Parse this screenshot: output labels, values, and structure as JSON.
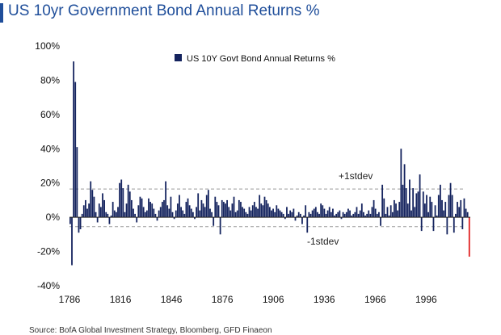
{
  "title": "US 10yr Government Bond Annual Returns %",
  "colors": {
    "title": "#1f4e9a",
    "bar": "#14235e",
    "latest_bar": "#e02020",
    "band_line": "#999999"
  },
  "source_text": "Source: BofA Global Investment Strategy, Bloomberg, GFD Finaeon",
  "chart_data": {
    "type": "bar",
    "legend": "US 10Y Govt Bond Annual Returns %",
    "legend_position": "top-center",
    "x_ticks": [
      "1786",
      "1816",
      "1846",
      "1876",
      "1906",
      "1936",
      "1966",
      "1996"
    ],
    "y_ticks": [
      "100%",
      "80%",
      "60%",
      "40%",
      "20%",
      "0%",
      "-20%",
      "-40%"
    ],
    "ylim": [
      -40,
      100
    ],
    "grid": false,
    "plus_stdev": {
      "label": "+1stdev",
      "value": 16.5
    },
    "minus_stdev": {
      "label": "-1stdev",
      "value": -5.5
    },
    "x_start": 1786,
    "x_end": 2022,
    "highlight_last": true,
    "values": [
      -4,
      -28,
      91,
      79,
      41,
      -9,
      -7,
      2,
      7,
      10,
      5,
      8,
      21,
      16,
      12,
      3,
      -3,
      8,
      6,
      14,
      10,
      3,
      2,
      -4,
      1,
      9,
      4,
      3,
      6,
      20,
      22,
      17,
      3,
      8,
      19,
      15,
      10,
      5,
      2,
      -3,
      7,
      12,
      11,
      6,
      3,
      4,
      11,
      9,
      8,
      5,
      2,
      -2,
      4,
      6,
      9,
      10,
      21,
      7,
      5,
      12,
      3,
      -1,
      4,
      8,
      13,
      6,
      4,
      2,
      9,
      11,
      7,
      5,
      3,
      -1,
      6,
      14,
      4,
      10,
      8,
      6,
      13,
      16,
      5,
      3,
      -5,
      12,
      9,
      7,
      -10,
      10,
      9,
      8,
      10,
      6,
      4,
      8,
      12,
      3,
      4,
      10,
      9,
      6,
      5,
      3,
      2,
      6,
      4,
      7,
      9,
      6,
      5,
      13,
      8,
      7,
      12,
      10,
      8,
      6,
      4,
      5,
      3,
      7,
      5,
      4,
      3,
      2,
      -1,
      6,
      2,
      4,
      3,
      5,
      -2,
      1,
      3,
      2,
      -4,
      1,
      7,
      -9,
      3,
      2,
      4,
      5,
      6,
      3,
      2,
      8,
      7,
      5,
      2,
      4,
      6,
      3,
      5,
      1,
      2,
      3,
      4,
      -1,
      3,
      2,
      3,
      5,
      4,
      1,
      2,
      3,
      6,
      2,
      4,
      8,
      3,
      1,
      2,
      4,
      2,
      6,
      10,
      5,
      2,
      3,
      -5,
      19,
      11,
      2,
      6,
      1,
      7,
      3,
      10,
      8,
      4,
      9,
      40,
      19,
      31,
      17,
      8,
      22,
      4,
      17,
      6,
      14,
      15,
      25,
      -8,
      15,
      8,
      13,
      3,
      12,
      9,
      -8,
      7,
      1,
      13,
      19,
      10,
      4,
      9,
      -10,
      13,
      20,
      13,
      -9,
      2,
      9,
      6,
      10,
      -7,
      11,
      5,
      3,
      -23
    ]
  }
}
